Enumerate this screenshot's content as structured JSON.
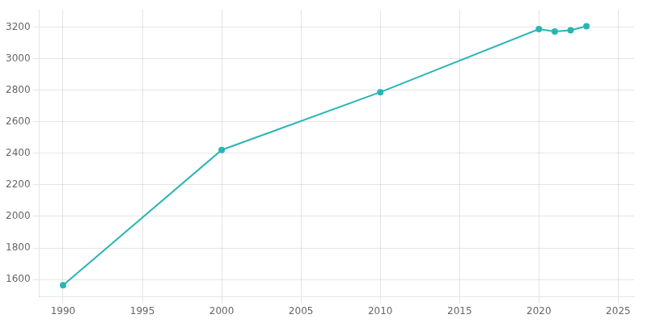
{
  "chart_data": {
    "type": "line",
    "x": [
      1990,
      2000,
      2010,
      2020,
      2021,
      2022,
      2023
    ],
    "values": [
      1563,
      2421,
      2787,
      3187,
      3172,
      3180,
      3205
    ],
    "color": "#2ab5b5",
    "marker": "circle",
    "xlim": [
      1988.5,
      2026
    ],
    "xticks": [
      1990,
      1995,
      2000,
      2005,
      2010,
      2015,
      2020,
      2025
    ],
    "ylim": [
      1490,
      3310
    ],
    "yticks": [
      1600,
      1800,
      2000,
      2200,
      2400,
      2600,
      2800,
      3000,
      3200
    ],
    "grid": true
  }
}
